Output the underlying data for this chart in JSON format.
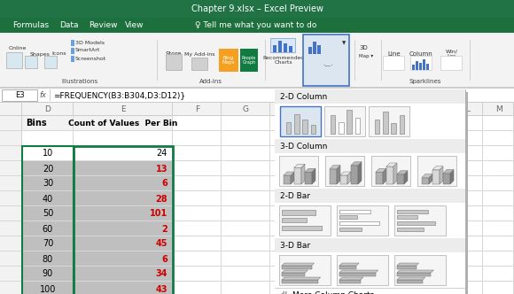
{
  "title_bar": "Chapter 9.xlsx – Excel Preview",
  "title_bar_bg": "#217346",
  "title_bar_fg": "#ffffff",
  "menu_bg": "#1e6f3e",
  "menu_fg": "#ffffff",
  "menu_items": [
    "Formulas",
    "Data",
    "Review",
    "View"
  ],
  "menu_tell": "♀ Tell me what you want to do",
  "ribbon_bg": "#f3f3f3",
  "formula_bar_text": "=FREQUENCY(B3:B304,D3:D12)}",
  "col_D_label": "Bins",
  "col_E_label": "Count of Values  Per Bin",
  "bins": [
    10,
    20,
    30,
    40,
    50,
    60,
    70,
    80,
    90,
    100
  ],
  "counts": [
    24,
    13,
    6,
    28,
    101,
    2,
    45,
    6,
    34,
    43
  ],
  "selected_bg": "#bfbfbf",
  "selected_border": "#107c41",
  "dropdown_sections": [
    "2-D Column",
    "3-D Column",
    "2-D Bar",
    "3-D Bar"
  ],
  "dropdown_footer": "More Column Charts...",
  "sparklines_label": "Sparklines"
}
